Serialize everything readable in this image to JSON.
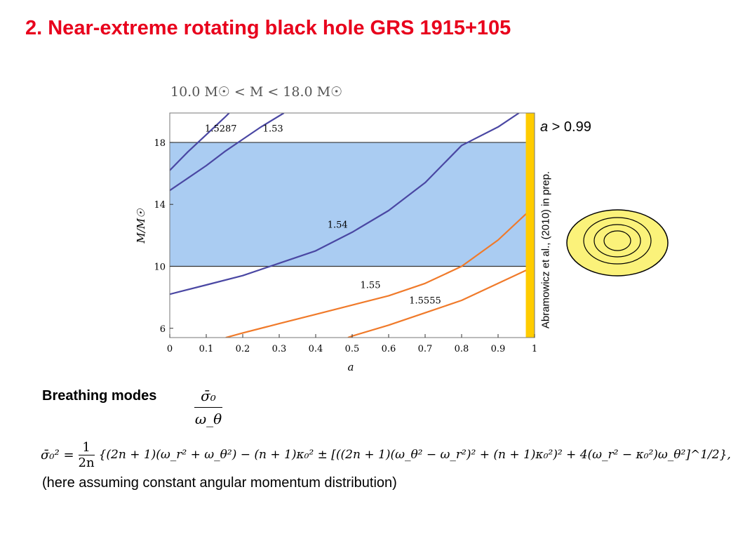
{
  "slide": {
    "title": "2. Near-extreme rotating black hole GRS 1915+105",
    "condition_a": "a",
    "condition_rest": " > 0.99",
    "reference": "Abramowicz et al., (2010) in prep.",
    "breathing_label": "Breathing modes",
    "ratio_numerator": "σ̄₀",
    "ratio_denominator": "ω_θ",
    "formula_lhs": "σ̄₀² =",
    "formula_frac_num": "1",
    "formula_frac_den": "2n",
    "formula_rhs": "{(2n + 1)(ω_r² + ω_θ²) − (n + 1)κ₀² ± [((2n + 1)(ω_θ² − ω_r²)² + (n + 1)κ₀²)² + 4(ω_r² − κ₀²)ω_θ²]^1/2},",
    "note": "(here assuming constant angular momentum distribution)"
  },
  "colors": {
    "title": "#e8001c",
    "band": "#aaccf2",
    "blue_curve": "#4a47a3",
    "orange_curve": "#f07a2a",
    "extreme_strip": "#ffcc00",
    "disk_fill": "#fbf27a"
  },
  "chart_data": {
    "type": "line",
    "title": "10.0 M☉ < M < 18.0 M☉",
    "xlabel": "a",
    "ylabel": "M/M☉",
    "xlim": [
      0,
      1
    ],
    "ylim": [
      5.4,
      19.9
    ],
    "x_ticks": [
      "0",
      "0.1",
      "0.2",
      "0.3",
      "0.4",
      "0.5",
      "0.6",
      "0.7",
      "0.8",
      "0.9",
      "1"
    ],
    "y_ticks": [
      "6",
      "10",
      "14",
      "18"
    ],
    "mass_band": [
      10,
      18
    ],
    "spin_strip": [
      0.976,
      1.0
    ],
    "series": [
      {
        "name": "1.5287",
        "color": "blue",
        "x": [
          0.0,
          0.05,
          0.1,
          0.15,
          0.1628
        ],
        "y": [
          16.2,
          17.4,
          18.5,
          19.6,
          19.9
        ]
      },
      {
        "name": "1.53",
        "color": "blue",
        "x": [
          0.0,
          0.05,
          0.1,
          0.15,
          0.2,
          0.25,
          0.3128
        ],
        "y": [
          14.9,
          15.7,
          16.5,
          17.4,
          18.2,
          19.0,
          19.9
        ]
      },
      {
        "name": "1.54",
        "color": "blue",
        "x": [
          0.0,
          0.1,
          0.2,
          0.3,
          0.4,
          0.5,
          0.6,
          0.7,
          0.8,
          0.9,
          0.9574
        ],
        "y": [
          8.2,
          8.8,
          9.4,
          10.2,
          11.0,
          12.2,
          13.6,
          15.4,
          17.8,
          19.0,
          19.9
        ]
      },
      {
        "name": "1.55",
        "color": "orange",
        "x": [
          0.1535,
          0.2,
          0.3,
          0.4,
          0.5,
          0.6,
          0.7,
          0.8,
          0.9,
          1.0
        ],
        "y": [
          5.4,
          5.7,
          6.3,
          6.9,
          7.5,
          8.1,
          8.9,
          10.0,
          11.7,
          13.9
        ]
      },
      {
        "name": "1.5555",
        "color": "orange",
        "x": [
          0.4884,
          0.5,
          0.6,
          0.7,
          0.8,
          0.9,
          1.0
        ],
        "y": [
          5.4,
          5.5,
          6.2,
          7.0,
          7.8,
          8.9,
          10.0
        ]
      }
    ],
    "annotations": [
      {
        "text": "1.5287",
        "x": 0.14,
        "y": 18.7
      },
      {
        "text": "1.53",
        "x": 0.283,
        "y": 18.7
      },
      {
        "text": "1.54",
        "x": 0.46,
        "y": 12.5
      },
      {
        "text": "1.55",
        "x": 0.55,
        "y": 8.6
      },
      {
        "text": "1.5555",
        "x": 0.7,
        "y": 7.6
      }
    ]
  }
}
